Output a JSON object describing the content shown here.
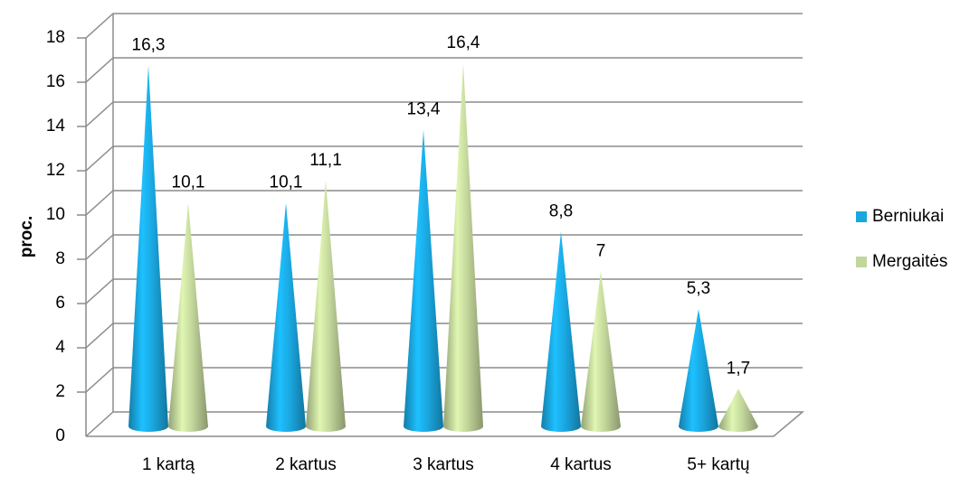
{
  "chart_data": {
    "type": "cone",
    "y_label": "proc.",
    "categories": [
      "1 kartą",
      "2 kartus",
      "3 kartus",
      "4 kartus",
      "5+ kartų"
    ],
    "series": [
      {
        "name": "Berniukai",
        "color": "#1aa7e0",
        "values": [
          16.3,
          10.1,
          13.4,
          8.8,
          5.3
        ],
        "value_labels": [
          "16,3",
          "10,1",
          "13,4",
          "8,8",
          "5,3"
        ]
      },
      {
        "name": "Mergaitės",
        "color": "#c3d69b",
        "values": [
          10.1,
          11.1,
          16.4,
          7,
          1.7
        ],
        "value_labels": [
          "10,1",
          "11,1",
          "16,4",
          "7",
          "1,7"
        ]
      }
    ],
    "ylim": [
      0,
      18
    ],
    "yticks": [
      0,
      2,
      4,
      6,
      8,
      10,
      12,
      14,
      16,
      18
    ],
    "grid": true,
    "legend": "right"
  }
}
